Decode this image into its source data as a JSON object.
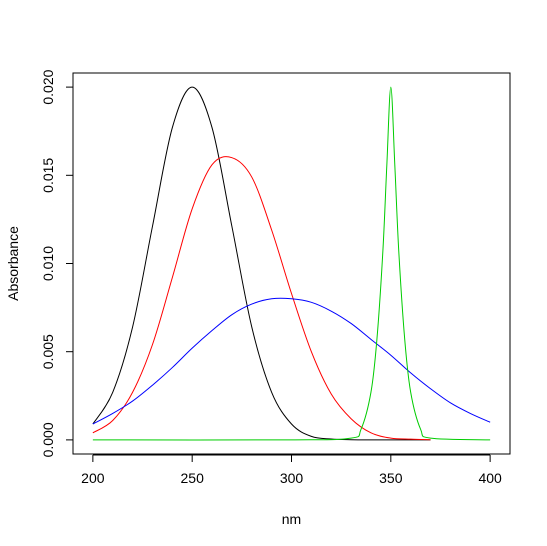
{
  "chart_data": {
    "type": "line",
    "title": "",
    "xlabel": "nm",
    "ylabel": "Absorbance",
    "xlim": [
      200,
      400
    ],
    "ylim": [
      0,
      0.02
    ],
    "x_ticks": [
      200,
      250,
      300,
      350,
      400
    ],
    "x_tick_labels": [
      "200",
      "250",
      "300",
      "350",
      "400"
    ],
    "y_ticks": [
      0.0,
      0.005,
      0.01,
      0.015,
      0.02
    ],
    "y_tick_labels": [
      "0.000",
      "0.005",
      "0.010",
      "0.015",
      "0.020"
    ],
    "grid": false,
    "legend": "none",
    "series": [
      {
        "color": "#000000",
        "x": [
          200,
          210,
          220,
          230,
          240,
          250,
          260,
          270,
          280,
          290,
          300,
          310,
          320,
          330,
          340,
          350,
          360,
          370
        ],
        "values": [
          0.0009,
          0.0027,
          0.0064,
          0.0121,
          0.0177,
          0.02,
          0.0177,
          0.0121,
          0.0064,
          0.0027,
          0.0009,
          0.0002,
          5e-05,
          1e-05,
          0.0,
          0.0,
          0.0,
          0.0
        ]
      },
      {
        "color": "#ff0000",
        "x": [
          200,
          210,
          220,
          230,
          240,
          250,
          260,
          270,
          280,
          290,
          300,
          310,
          320,
          330,
          340,
          350,
          360,
          370
        ],
        "values": [
          0.0004,
          0.0011,
          0.0027,
          0.0054,
          0.0092,
          0.0131,
          0.0156,
          0.016,
          0.0149,
          0.0119,
          0.0083,
          0.005,
          0.0026,
          0.0012,
          0.0004,
          0.0001,
          4e-05,
          1e-05
        ]
      },
      {
        "color": "#0000ff",
        "x": [
          200,
          210,
          220,
          230,
          240,
          250,
          260,
          270,
          280,
          290,
          300,
          310,
          320,
          330,
          340,
          350,
          360,
          370,
          380,
          390,
          400
        ],
        "values": [
          0.0009,
          0.0015,
          0.0022,
          0.0031,
          0.0041,
          0.0052,
          0.0062,
          0.0071,
          0.0077,
          0.008,
          0.008,
          0.0078,
          0.0073,
          0.0066,
          0.0057,
          0.0048,
          0.0038,
          0.0029,
          0.0021,
          0.0015,
          0.001
        ]
      },
      {
        "color": "#00cc00",
        "x": [
          200,
          300,
          330,
          335,
          340,
          343,
          346,
          348,
          350,
          352,
          354,
          357,
          360,
          365,
          370,
          400
        ],
        "values": [
          0.0,
          0.0,
          0.0001,
          0.0006,
          0.0027,
          0.0057,
          0.0107,
          0.0156,
          0.02,
          0.0156,
          0.0107,
          0.0057,
          0.0027,
          0.0006,
          0.0001,
          0.0
        ]
      }
    ]
  }
}
